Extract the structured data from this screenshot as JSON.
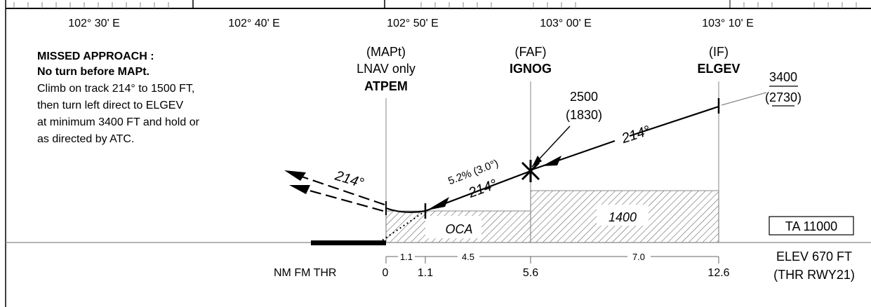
{
  "longitudes": [
    "102° 30' E",
    "102° 40' E",
    "102° 50' E",
    "103° 00' E",
    "103° 10' E"
  ],
  "missed_approach": {
    "title": "MISSED APPROACH :",
    "subtitle": "No turn before MAPt.",
    "lines": [
      "Climb on track 214° to 1500 FT,",
      "then turn left direct to ELGEV",
      "at minimum 3400 FT and hold or",
      "as directed by ATC."
    ]
  },
  "fixes": {
    "mapt": {
      "role": "(MAPt)",
      "note": "LNAV only",
      "name": "ATPEM"
    },
    "faf": {
      "role": "(FAF)",
      "name": "IGNOG"
    },
    "if": {
      "role": "(IF)",
      "name": "ELGEV"
    }
  },
  "altitudes": {
    "faf_alt": "2500",
    "faf_height": "(1830)",
    "if_alt": "3400",
    "if_height": "(2730)"
  },
  "track_labels": {
    "intermediate": "214°",
    "final": "214°",
    "gradient": "5.2% (3.0°)",
    "missed": "214°"
  },
  "oca": {
    "final_label": "OCA",
    "intermediate_value": "1400"
  },
  "transition_altitude": "TA 11000",
  "elevation": {
    "line1": "ELEV 670 FT",
    "line2": "(THR RWY21)"
  },
  "distance_scale": {
    "label": "NM FM THR",
    "marks": [
      "0",
      "1.1",
      "5.6",
      "12.6"
    ],
    "segments": [
      "1.1",
      "4.5",
      "7.0"
    ]
  }
}
